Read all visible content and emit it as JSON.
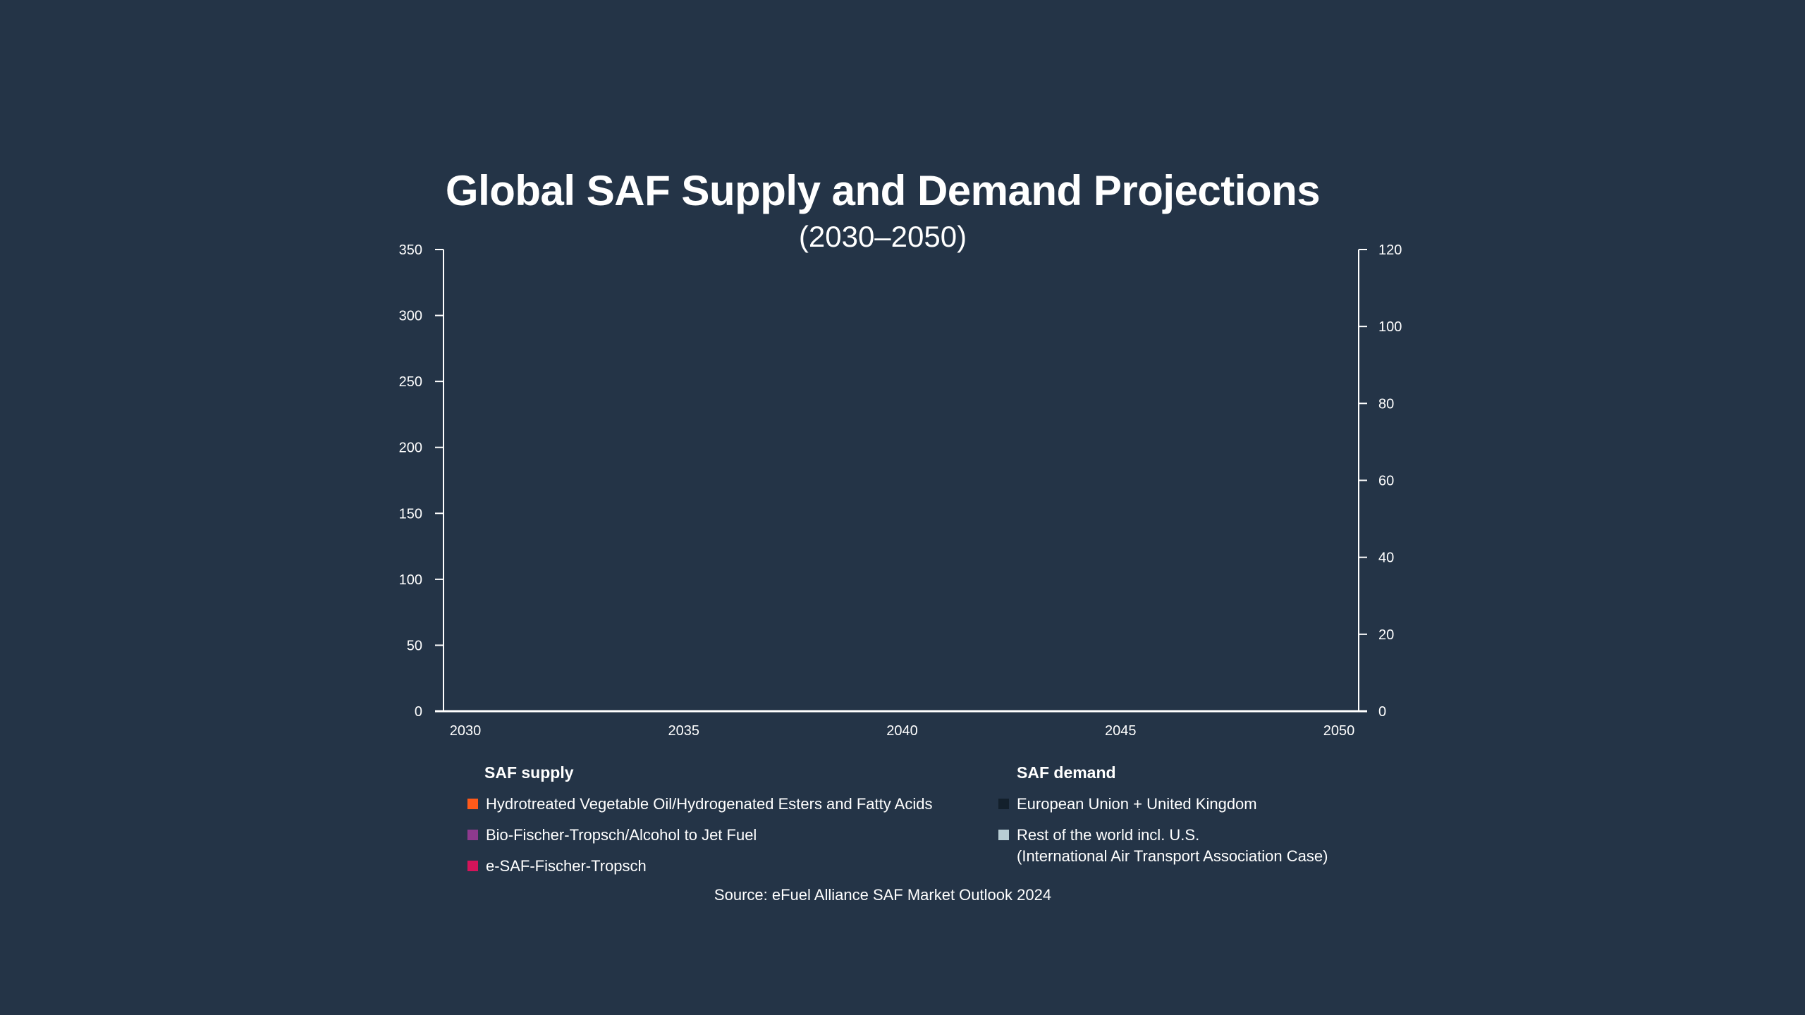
{
  "chart_data": {
    "type": "area",
    "title": "Global SAF Supply and Demand Projections",
    "subtitle": "(2030–2050)",
    "x_ticks": [
      "2030",
      "2035",
      "2040",
      "2045",
      "2050"
    ],
    "xlim": [
      2030,
      2050
    ],
    "y_left": {
      "ylim": [
        0,
        350
      ],
      "ticks": [
        "0",
        "50",
        "100",
        "150",
        "200",
        "250",
        "300",
        "350"
      ]
    },
    "y_right": {
      "ylim": [
        0,
        120
      ],
      "ticks": [
        "0",
        "20",
        "40",
        "60",
        "80",
        "100",
        "120"
      ]
    },
    "grid": false,
    "legend_placement": "bottom",
    "supply_heading": "SAF supply",
    "demand_heading": "SAF demand",
    "supply_series": [
      {
        "name": "Hydrotreated Vegetable Oil/Hydrogenated Esters and Fatty Acids",
        "color": "#ff5a1a",
        "values": []
      },
      {
        "name": "Bio-Fischer-Tropsch/Alcohol to Jet Fuel",
        "color": "#8e3a8e",
        "values": []
      },
      {
        "name": "e-SAF-Fischer-Tropsch",
        "color": "#d4145a",
        "values": []
      }
    ],
    "demand_series": [
      {
        "name": "European Union + United Kingdom",
        "color": "#13202c",
        "values": []
      },
      {
        "name": "Rest of the world incl. U.S.",
        "name_line2": "(International Air Transport Association Case)",
        "color": "#b8cdd4",
        "values": []
      }
    ],
    "source": "Source: eFuel Alliance SAF Market Outlook 2024"
  },
  "colors": {
    "background": "#243447",
    "axis": "#ffffff"
  }
}
